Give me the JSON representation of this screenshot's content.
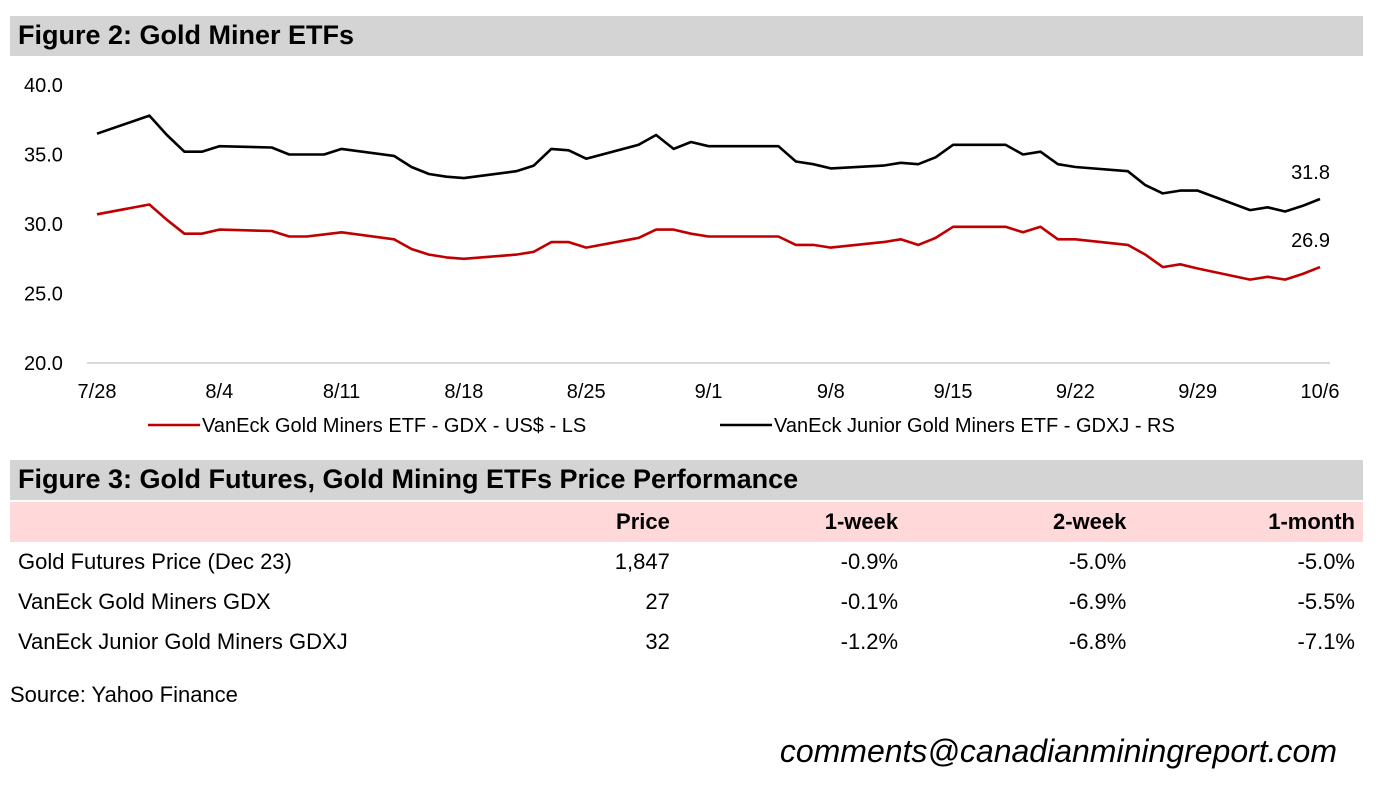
{
  "figure2": {
    "title": "Figure 2: Gold Miner ETFs"
  },
  "chart_data": {
    "type": "line",
    "title": "Figure 2: Gold Miner ETFs",
    "xlabel": "",
    "ylabel": "",
    "ylim": [
      20,
      40
    ],
    "yticks": [
      "20.0",
      "25.0",
      "30.0",
      "35.0",
      "40.0"
    ],
    "xticks": [
      "7/28",
      "8/4",
      "8/11",
      "8/18",
      "8/25",
      "9/1",
      "9/8",
      "9/15",
      "9/22",
      "9/29",
      "10/6"
    ],
    "grid": false,
    "legend_position": "bottom",
    "x": [
      "7/28",
      "7/31",
      "8/1",
      "8/2",
      "8/3",
      "8/4",
      "8/7",
      "8/8",
      "8/9",
      "8/10",
      "8/11",
      "8/14",
      "8/15",
      "8/16",
      "8/17",
      "8/18",
      "8/21",
      "8/22",
      "8/23",
      "8/24",
      "8/25",
      "8/28",
      "8/29",
      "8/30",
      "8/31",
      "9/1",
      "9/5",
      "9/6",
      "9/7",
      "9/8",
      "9/11",
      "9/12",
      "9/13",
      "9/14",
      "9/15",
      "9/18",
      "9/19",
      "9/20",
      "9/21",
      "9/22",
      "9/25",
      "9/26",
      "9/27",
      "9/28",
      "9/29",
      "10/2",
      "10/3",
      "10/4",
      "10/5",
      "10/6"
    ],
    "series": [
      {
        "name": "VanEck Gold Miners ETF  - GDX  - US$ - LS",
        "axis": "left",
        "color": "#c00000",
        "values": [
          30.7,
          31.4,
          30.3,
          29.3,
          29.3,
          29.6,
          29.5,
          29.1,
          29.1,
          29.25,
          29.4,
          28.9,
          28.2,
          27.8,
          27.6,
          27.5,
          27.8,
          28.0,
          28.7,
          28.7,
          28.3,
          29.0,
          29.6,
          29.6,
          29.3,
          29.1,
          29.1,
          28.5,
          28.5,
          28.3,
          28.7,
          28.9,
          28.5,
          29.0,
          29.8,
          29.8,
          29.4,
          29.8,
          28.9,
          28.9,
          28.5,
          27.8,
          26.9,
          27.1,
          26.8,
          26.0,
          26.2,
          26.0,
          26.4,
          26.9
        ],
        "end_label": "26.9"
      },
      {
        "name": "VanEck Junior Gold Miners ETF - GDXJ - RS",
        "axis": "right",
        "color": "#000000",
        "values": [
          36.5,
          37.8,
          36.4,
          35.2,
          35.2,
          35.6,
          35.5,
          35.0,
          35.0,
          35.0,
          35.4,
          34.9,
          34.1,
          33.6,
          33.4,
          33.3,
          33.8,
          34.2,
          35.4,
          35.3,
          34.7,
          35.7,
          36.4,
          35.4,
          35.9,
          35.6,
          35.6,
          34.5,
          34.3,
          34.0,
          34.2,
          34.4,
          34.3,
          34.8,
          35.7,
          35.7,
          35.0,
          35.2,
          34.3,
          34.1,
          33.8,
          32.8,
          32.2,
          32.4,
          32.4,
          31.0,
          31.2,
          30.9,
          31.3,
          31.8
        ],
        "end_label": "31.8"
      }
    ]
  },
  "figure3": {
    "title": "Figure 3: Gold Futures, Gold Mining ETFs Price Performance",
    "columns": [
      "",
      "Price",
      "1-week",
      "2-week",
      "1-month"
    ],
    "rows": [
      [
        "Gold Futures Price (Dec 23)",
        "1,847",
        "-0.9%",
        "-5.0%",
        "-5.0%"
      ],
      [
        "VanEck Gold Miners GDX",
        "27",
        "-0.1%",
        "-6.9%",
        "-5.5%"
      ],
      [
        "VanEck Junior Gold Miners GDXJ",
        "32",
        "-1.2%",
        "-6.8%",
        "-7.1%"
      ]
    ]
  },
  "source": "Source: Yahoo Finance",
  "email": "comments@canadianminingreport.com",
  "colors": {
    "header_bg": "#d4d4d4",
    "table_header_bg": "#ffd9d9",
    "gdx_line": "#c00000",
    "gdxj_line": "#000000",
    "axis_line": "#d9d9d9"
  }
}
